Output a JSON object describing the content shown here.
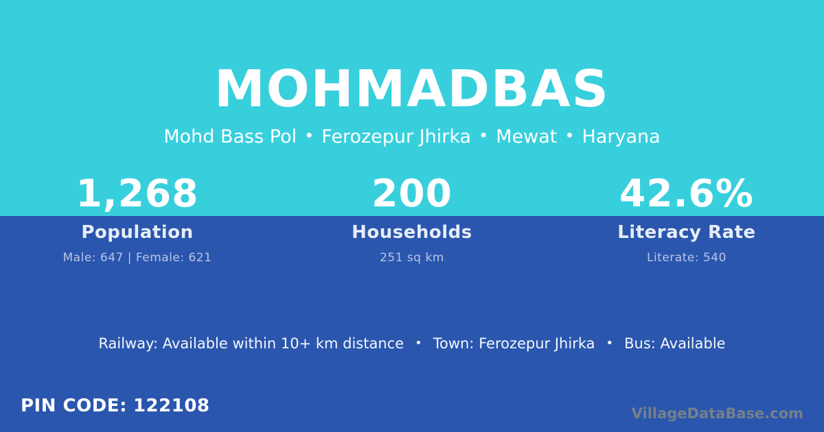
{
  "card": {
    "title": "MOHMADBAS",
    "location": {
      "separator": "•",
      "parts": [
        "Mohd Bass Pol",
        "Ferozepur Jhirka",
        "Mewat",
        "Haryana"
      ]
    },
    "stats": [
      {
        "value": "1,268",
        "label": "Population",
        "detail": "Male: 647 | Female: 621"
      },
      {
        "value": "200",
        "label": "Households",
        "detail": "251 sq km"
      },
      {
        "value": "42.6%",
        "label": "Literacy Rate",
        "detail": "Literate: 540"
      }
    ],
    "facts": {
      "separator": "•",
      "items": [
        "Railway: Available within 10+ km distance",
        "Town: Ferozepur Jhirka",
        "Bus: Available"
      ]
    },
    "pin": {
      "label": "PIN CODE:",
      "value": "122108"
    },
    "watermark": "VillageDataBase.com",
    "colors": {
      "top_bg": "#38cfdd",
      "bottom_bg": "#2a56ae"
    }
  }
}
